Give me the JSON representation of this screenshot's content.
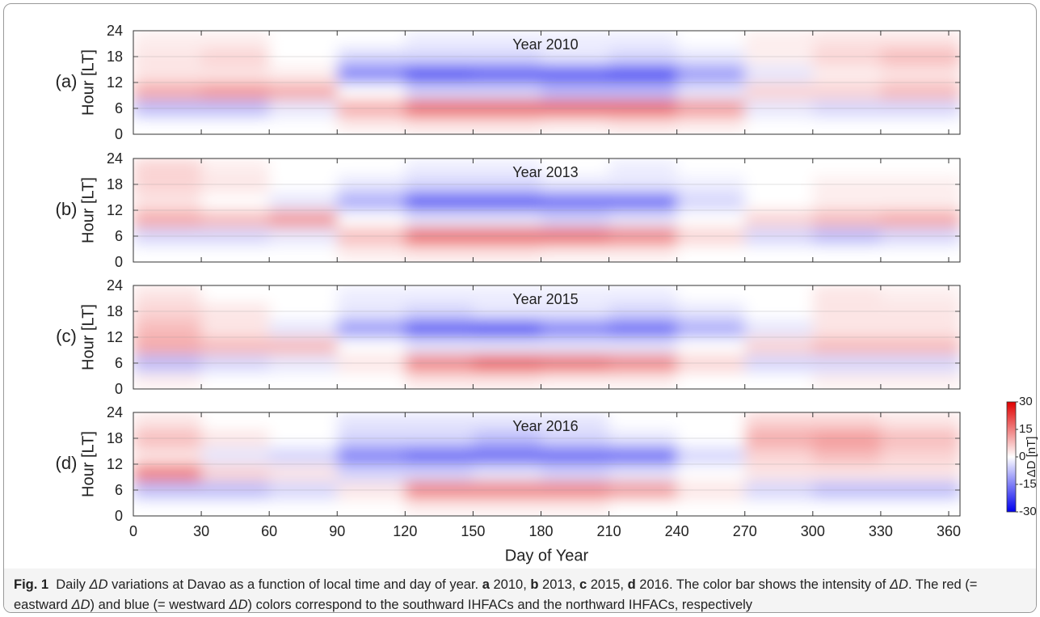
{
  "chart_data": [
    {
      "type": "heatmap",
      "panel_label": "(a)",
      "title": "Year 2010",
      "ylabel": "Hour [LT]",
      "ylim": [
        0,
        24
      ],
      "yticks": [
        0,
        6,
        12,
        18,
        24
      ],
      "grid": true,
      "xbins": [
        0,
        30,
        60,
        90,
        120,
        150,
        180,
        210,
        240,
        270,
        300,
        330,
        365
      ],
      "ybins": [
        0,
        4,
        8,
        12,
        16,
        20,
        24
      ],
      "values": [
        [
          0,
          0,
          0,
          2,
          3,
          3,
          2,
          3,
          2,
          0,
          0,
          0
        ],
        [
          -8,
          -8,
          -3,
          10,
          18,
          18,
          18,
          18,
          12,
          -3,
          -5,
          -5
        ],
        [
          10,
          12,
          10,
          0,
          -5,
          -5,
          -8,
          -8,
          -3,
          5,
          5,
          8
        ],
        [
          3,
          3,
          2,
          -15,
          -22,
          -20,
          -20,
          -22,
          -12,
          -3,
          2,
          3
        ],
        [
          3,
          5,
          0,
          -5,
          -5,
          -5,
          -3,
          -5,
          -3,
          2,
          5,
          8
        ],
        [
          2,
          2,
          0,
          0,
          -2,
          -2,
          -2,
          -2,
          0,
          2,
          3,
          3
        ]
      ]
    },
    {
      "type": "heatmap",
      "panel_label": "(b)",
      "title": "Year 2013",
      "ylabel": "Hour [LT]",
      "ylim": [
        0,
        24
      ],
      "yticks": [
        0,
        6,
        12,
        18,
        24
      ],
      "grid": true,
      "xbins": [
        0,
        30,
        60,
        90,
        120,
        150,
        180,
        210,
        240,
        270,
        300,
        330,
        365
      ],
      "ybins": [
        0,
        4,
        8,
        12,
        16,
        20,
        24
      ],
      "values": [
        [
          0,
          0,
          0,
          2,
          3,
          3,
          2,
          2,
          0,
          0,
          0,
          0
        ],
        [
          -5,
          -5,
          -3,
          8,
          18,
          18,
          18,
          15,
          5,
          -5,
          -8,
          -5
        ],
        [
          10,
          8,
          12,
          0,
          -3,
          -3,
          -5,
          -3,
          0,
          5,
          8,
          10
        ],
        [
          3,
          0,
          -3,
          -10,
          -20,
          -20,
          -18,
          -18,
          -5,
          0,
          2,
          2
        ],
        [
          5,
          3,
          0,
          -3,
          -5,
          -5,
          -3,
          -3,
          -2,
          0,
          2,
          2
        ],
        [
          5,
          2,
          0,
          0,
          -2,
          -2,
          0,
          -2,
          0,
          0,
          0,
          0
        ]
      ]
    },
    {
      "type": "heatmap",
      "panel_label": "(c)",
      "title": "Year 2015",
      "ylabel": "Hour [LT]",
      "ylim": [
        0,
        24
      ],
      "yticks": [
        0,
        6,
        12,
        18,
        24
      ],
      "grid": true,
      "xbins": [
        0,
        30,
        60,
        90,
        120,
        150,
        180,
        210,
        240,
        270,
        300,
        330,
        365
      ],
      "ybins": [
        0,
        4,
        8,
        12,
        16,
        20,
        24
      ],
      "values": [
        [
          2,
          0,
          0,
          0,
          3,
          3,
          2,
          2,
          0,
          0,
          2,
          2
        ],
        [
          -8,
          -5,
          -3,
          3,
          15,
          20,
          18,
          15,
          5,
          -5,
          -5,
          -5
        ],
        [
          10,
          8,
          8,
          0,
          -3,
          -3,
          -3,
          -3,
          0,
          5,
          8,
          8
        ],
        [
          8,
          3,
          -3,
          -12,
          -20,
          -22,
          -15,
          -18,
          -10,
          -3,
          3,
          3
        ],
        [
          5,
          3,
          0,
          -3,
          -5,
          -3,
          -3,
          -5,
          -3,
          0,
          3,
          3
        ],
        [
          3,
          0,
          0,
          -2,
          -2,
          -2,
          -2,
          -2,
          0,
          0,
          3,
          2
        ]
      ]
    },
    {
      "type": "heatmap",
      "panel_label": "(d)",
      "title": "Year 2016",
      "ylabel": "Hour [LT]",
      "ylim": [
        0,
        24
      ],
      "yticks": [
        0,
        6,
        12,
        18,
        24
      ],
      "grid": true,
      "xbins": [
        0,
        30,
        60,
        90,
        120,
        150,
        180,
        210,
        240,
        270,
        300,
        330,
        365
      ],
      "ybins": [
        0,
        4,
        8,
        12,
        16,
        20,
        24
      ],
      "values": [
        [
          0,
          0,
          0,
          0,
          2,
          2,
          2,
          0,
          0,
          0,
          0,
          0
        ],
        [
          -8,
          -8,
          -5,
          3,
          15,
          15,
          15,
          12,
          3,
          -5,
          -8,
          -8
        ],
        [
          15,
          5,
          3,
          -5,
          -5,
          -3,
          -5,
          -3,
          0,
          3,
          3,
          3
        ],
        [
          3,
          -3,
          -5,
          -15,
          -18,
          -18,
          -18,
          -18,
          -5,
          5,
          8,
          5
        ],
        [
          8,
          3,
          0,
          -5,
          -5,
          -8,
          -5,
          -3,
          0,
          10,
          12,
          8
        ],
        [
          3,
          0,
          0,
          -3,
          -3,
          -3,
          -3,
          0,
          0,
          5,
          5,
          3
        ]
      ],
      "xlabel": "Day of Year",
      "xlim": [
        0,
        365
      ],
      "xticks": [
        0,
        30,
        60,
        90,
        120,
        150,
        180,
        210,
        240,
        270,
        300,
        330,
        360
      ],
      "colorbar": {
        "label": "ΔD [nT]",
        "lim": [
          -30,
          30
        ],
        "ticks": [
          -30,
          -15,
          0,
          15,
          30
        ],
        "colors": [
          "#0000ee",
          "#ffffff",
          "#e00000"
        ]
      }
    }
  ],
  "caption": [
    {
      "text": "Fig. 1",
      "bold": true
    },
    {
      "text": "  Daily "
    },
    {
      "text": "ΔD",
      "italic": true
    },
    {
      "text": " variations at Davao as a function of local time and day of year. "
    },
    {
      "text": "a",
      "bold": true
    },
    {
      "text": " 2010, "
    },
    {
      "text": "b",
      "bold": true
    },
    {
      "text": " 2013, "
    },
    {
      "text": "c",
      "bold": true
    },
    {
      "text": " 2015, "
    },
    {
      "text": "d",
      "bold": true
    },
    {
      "text": " 2016. The color bar shows the intensity of "
    },
    {
      "text": "ΔD",
      "italic": true
    },
    {
      "text": ". The red (= eastward "
    },
    {
      "text": "ΔD",
      "italic": true
    },
    {
      "text": ") and blue (= westward "
    },
    {
      "text": "ΔD",
      "italic": true
    },
    {
      "text": ") colors correspond to the southward IHFACs and the northward IHFACs, respectively"
    }
  ]
}
